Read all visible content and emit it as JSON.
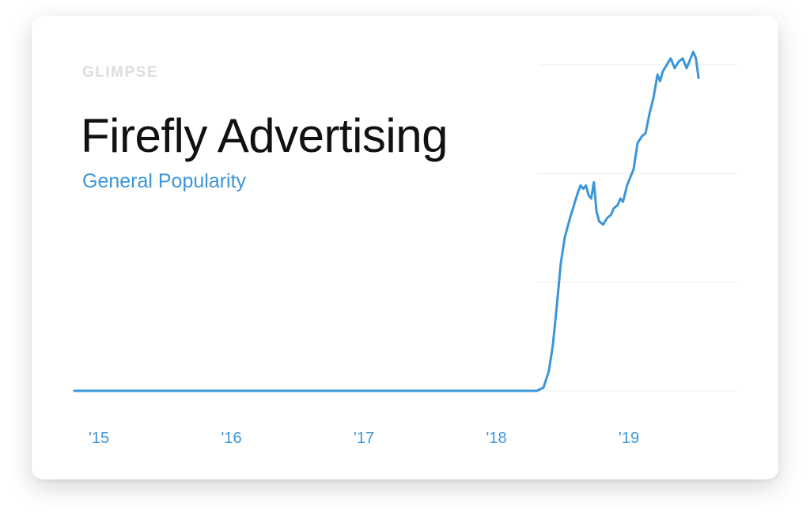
{
  "brand": {
    "logo_text": "GLIMPSE"
  },
  "colors": {
    "accent": "#3b96d9",
    "line": "#3b96d9",
    "title": "#111111",
    "grid": "#ececec",
    "logo": "#dddddd"
  },
  "chart_data": {
    "type": "line",
    "title": "Firefly Advertising",
    "subtitle": "General Popularity",
    "xlabel": "",
    "ylabel": "",
    "grid": true,
    "x_ticks": [
      "'15",
      "'16",
      "'17",
      "'18",
      "'19"
    ],
    "xlim": [
      2015.0,
      2019.8
    ],
    "ylim": [
      0,
      100
    ],
    "series": [
      {
        "values": [
          [
            2015.0,
            0
          ],
          [
            2015.5,
            0
          ],
          [
            2016.0,
            0
          ],
          [
            2016.5,
            0
          ],
          [
            2017.0,
            0
          ],
          [
            2017.5,
            0
          ],
          [
            2018.0,
            0
          ],
          [
            2018.3,
            0
          ],
          [
            2018.35,
            1
          ],
          [
            2018.39,
            6
          ],
          [
            2018.42,
            14
          ],
          [
            2018.45,
            26
          ],
          [
            2018.48,
            39
          ],
          [
            2018.51,
            47
          ],
          [
            2018.55,
            53
          ],
          [
            2018.58,
            57
          ],
          [
            2018.61,
            61
          ],
          [
            2018.63,
            63
          ],
          [
            2018.65,
            62
          ],
          [
            2018.67,
            63
          ],
          [
            2018.69,
            60
          ],
          [
            2018.71,
            59
          ],
          [
            2018.73,
            64
          ],
          [
            2018.75,
            55
          ],
          [
            2018.77,
            52
          ],
          [
            2018.8,
            51
          ],
          [
            2018.83,
            53
          ],
          [
            2018.86,
            54
          ],
          [
            2018.88,
            56
          ],
          [
            2018.91,
            57
          ],
          [
            2018.93,
            59
          ],
          [
            2018.95,
            58
          ],
          [
            2018.98,
            63
          ],
          [
            2019.0,
            65
          ],
          [
            2019.03,
            68
          ],
          [
            2019.06,
            76
          ],
          [
            2019.09,
            78
          ],
          [
            2019.12,
            79
          ],
          [
            2019.15,
            85
          ],
          [
            2019.18,
            90
          ],
          [
            2019.21,
            97
          ],
          [
            2019.23,
            95
          ],
          [
            2019.25,
            98
          ],
          [
            2019.28,
            100
          ],
          [
            2019.31,
            102
          ],
          [
            2019.34,
            99
          ],
          [
            2019.37,
            101
          ],
          [
            2019.4,
            102
          ],
          [
            2019.43,
            99
          ],
          [
            2019.45,
            101
          ],
          [
            2019.48,
            104
          ],
          [
            2019.5,
            102
          ],
          [
            2019.52,
            96
          ]
        ]
      }
    ]
  }
}
